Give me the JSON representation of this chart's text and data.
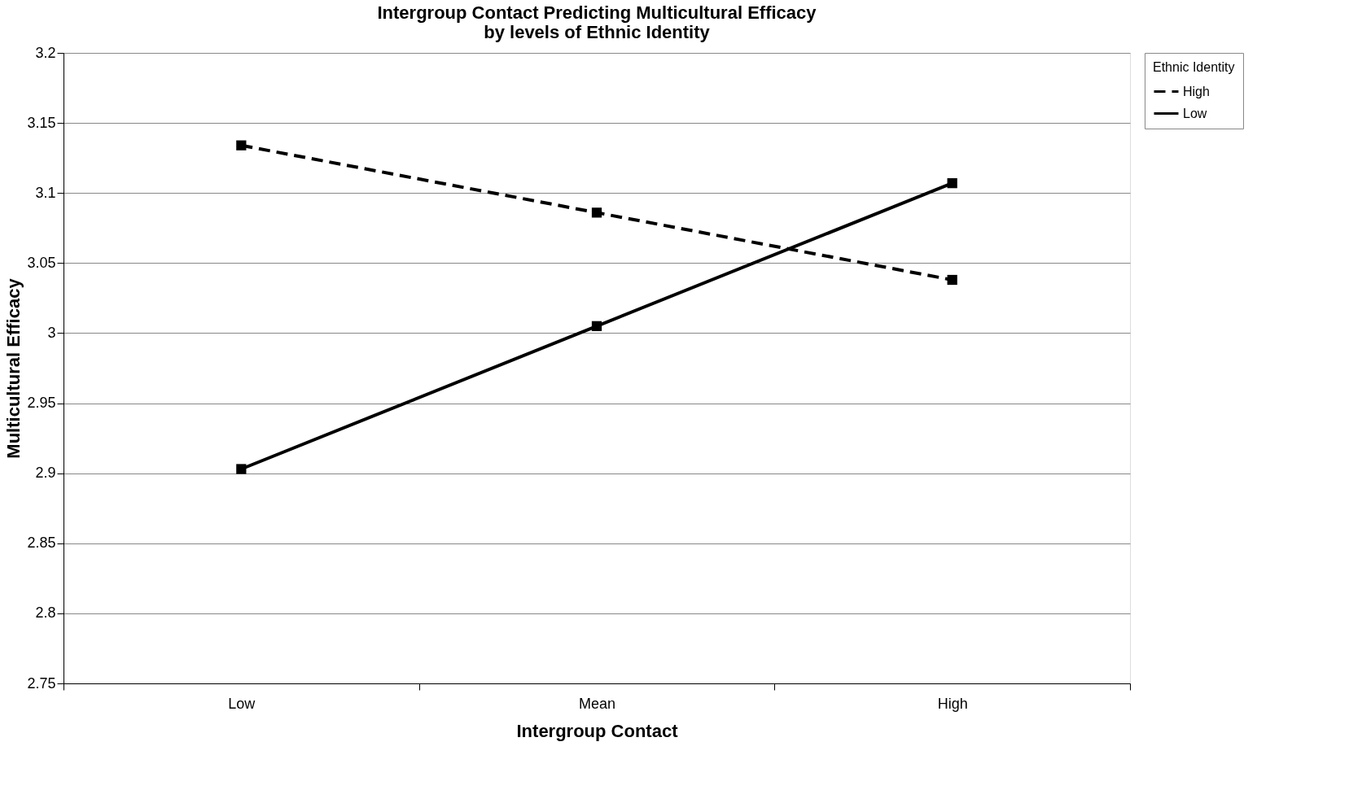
{
  "chart_data": {
    "type": "line",
    "title": [
      "Intergroup Contact Predicting Multicultural Efficacy",
      "by levels of Ethnic Identity"
    ],
    "xlabel": "Intergroup Contact",
    "ylabel": "Multicultural Efficacy",
    "legend_title": "Ethnic Identity",
    "categories": [
      "Low",
      "Mean",
      "High"
    ],
    "series": [
      {
        "name": "High",
        "color": "#000000",
        "values": [
          3.134,
          3.086,
          3.038
        ],
        "line_style": "dashed"
      },
      {
        "name": "Low",
        "color": "#000000",
        "values": [
          2.903,
          3.005,
          3.107
        ],
        "line_style": "solid"
      }
    ],
    "ylim": [
      2.75,
      3.2
    ],
    "yticks": [
      2.75,
      {
        "value": 2.8,
        "label": "2.8"
      },
      2.85,
      {
        "value": 2.9,
        "label": "2.9"
      },
      2.95,
      {
        "value": 3,
        "label": "3"
      },
      3.05,
      {
        "value": 3.1,
        "label": "3.1"
      },
      3.15,
      {
        "value": 3.2,
        "label": "3.2"
      }
    ],
    "grid": "y",
    "legend": "right",
    "marker": "square"
  }
}
